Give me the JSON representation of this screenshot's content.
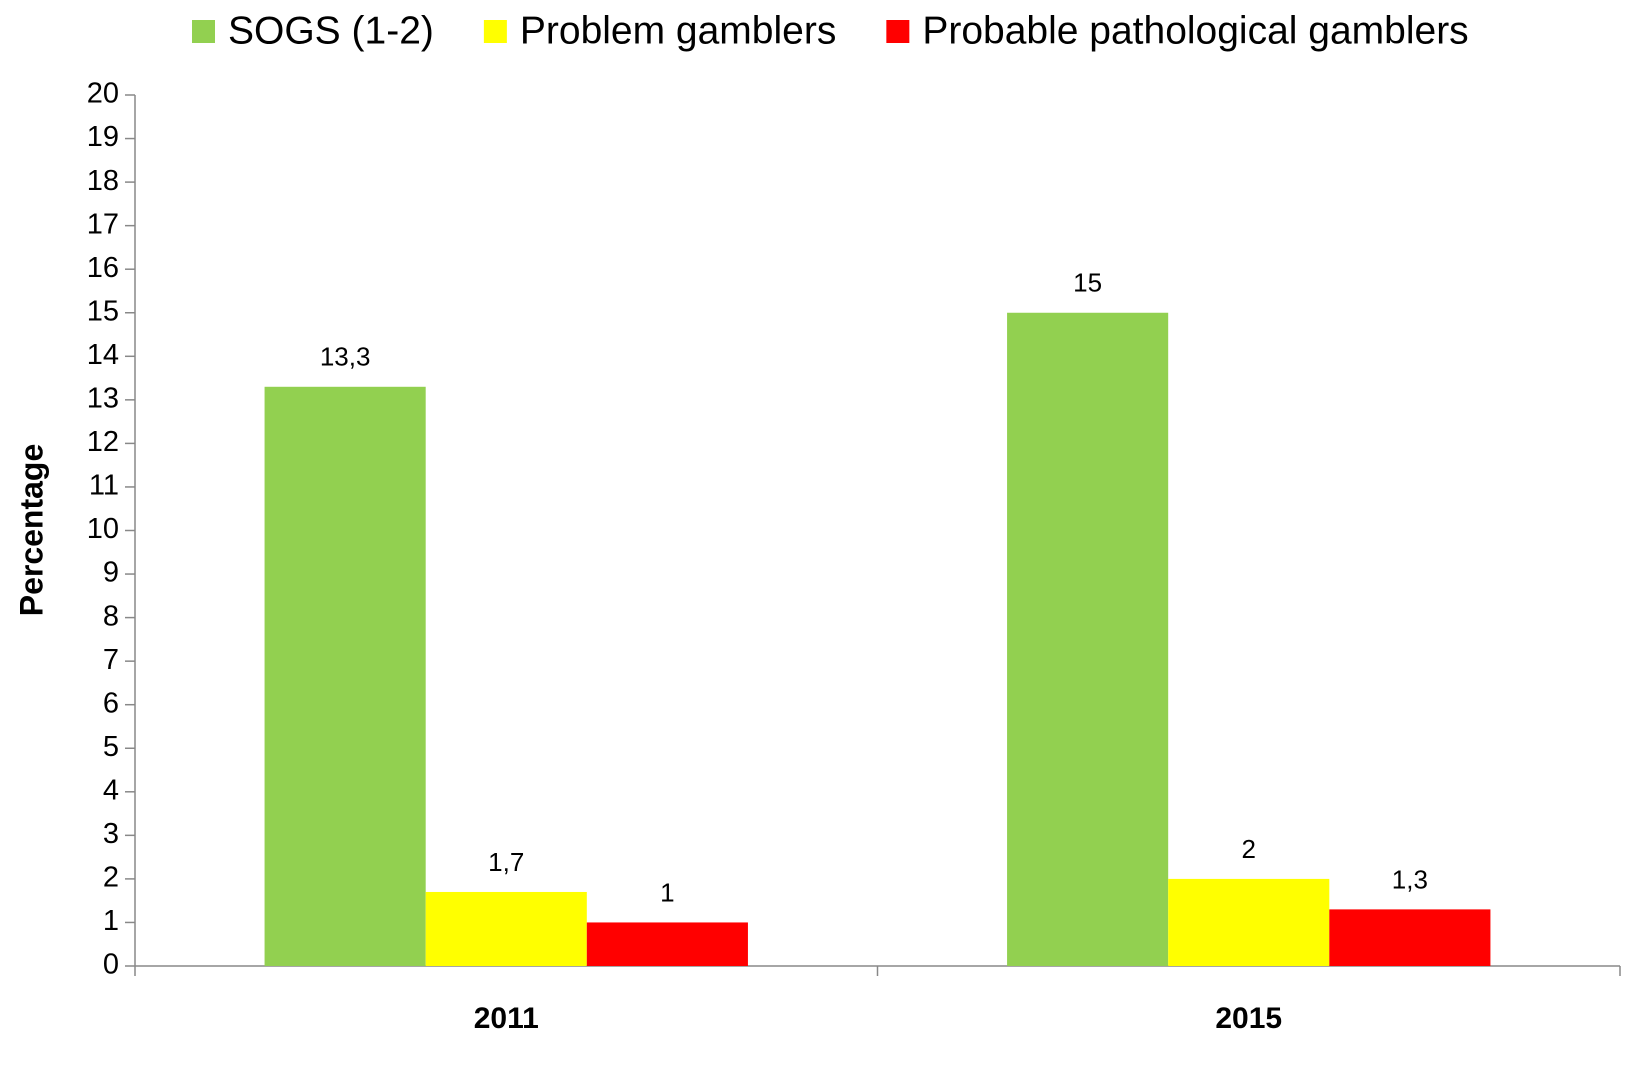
{
  "chart_data": {
    "type": "bar",
    "categories": [
      "2011",
      "2015"
    ],
    "series": [
      {
        "name": "SOGS (1-2)",
        "color": "#92d050",
        "values": [
          13.3,
          15
        ],
        "value_labels": [
          "13,3",
          "15"
        ]
      },
      {
        "name": "Problem gamblers",
        "color": "#ffff00",
        "values": [
          1.7,
          2
        ],
        "value_labels": [
          "1,7",
          "2"
        ]
      },
      {
        "name": "Probable pathological gamblers",
        "color": "#ff0000",
        "values": [
          1,
          1.3
        ],
        "value_labels": [
          "1",
          "1,3"
        ]
      }
    ],
    "y_label": "Percentage",
    "ylim": [
      0,
      20
    ],
    "yticks": [
      0,
      1,
      2,
      3,
      4,
      5,
      6,
      7,
      8,
      9,
      10,
      11,
      12,
      13,
      14,
      15,
      16,
      17,
      18,
      19,
      20
    ],
    "legend": "top"
  }
}
